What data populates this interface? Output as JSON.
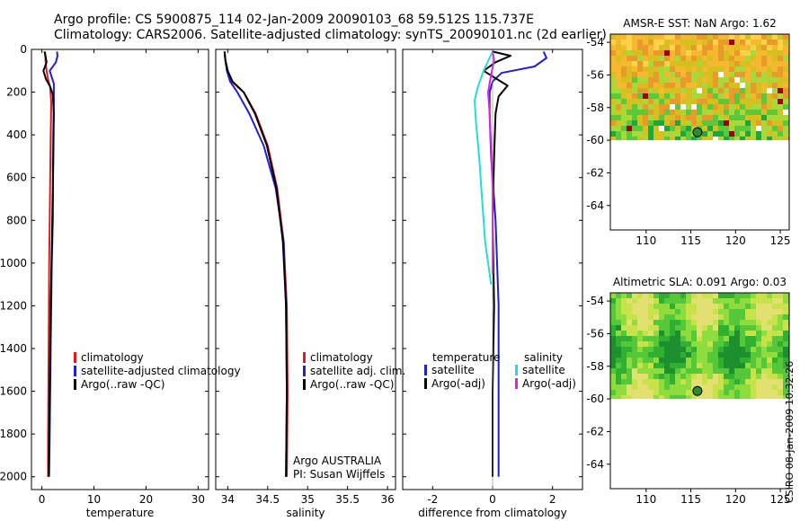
{
  "figure": {
    "title_line1": "Argo profile: CS 5900875_114 02-Jan-2009 20090103_68 59.512S 115.737E",
    "title_line2": "Climatology: CARS2006. Satellite-adjusted climatology: synTS_20090101.nc (2d earlier)",
    "stamp": "CSIRO 08-Jan-2009 10:32:26",
    "argo_note": "Argo AUSTRALIA",
    "pi_note": "PI: Susan Wijffels"
  },
  "colors": {
    "climatology": "#e31a1c",
    "satellite": "#1f1fd6",
    "argo": "#000000",
    "sat_salinity": "#22dde0",
    "argo_salinity_adj": "#e020e0",
    "marker": "#2e8b2e"
  },
  "chart_data": [
    {
      "type": "line",
      "xlabel": "temperature",
      "ylabel": "",
      "xlim": [
        -2,
        32
      ],
      "ylim": [
        2060,
        0
      ],
      "y_reversed": true,
      "xticks": [
        0,
        10,
        20,
        30
      ],
      "yticks": [
        0,
        200,
        400,
        600,
        800,
        1000,
        1200,
        1400,
        1600,
        1800,
        2000
      ],
      "legend": {
        "placement": "lower-left",
        "entries": [
          "climatology",
          "satellite-adjusted climatology",
          "Argo(..raw -QC)"
        ]
      },
      "series": [
        {
          "name": "climatology",
          "color_key": "climatology",
          "x": [
            0.6,
            0.7,
            0.9,
            1.2,
            1.6,
            1.8,
            1.7,
            1.5,
            1.4,
            1.3,
            1.2,
            1.2
          ],
          "y": [
            10,
            50,
            100,
            140,
            180,
            250,
            400,
            800,
            1000,
            1400,
            1800,
            2000
          ]
        },
        {
          "name": "satellite-adjusted climatology",
          "color_key": "satellite",
          "x": [
            2.9,
            3.0,
            2.7,
            1.5,
            2.3,
            2.3,
            2.2,
            2.1,
            1.9,
            1.7,
            1.5,
            1.4
          ],
          "y": [
            10,
            30,
            60,
            100,
            160,
            250,
            400,
            800,
            1000,
            1400,
            1800,
            2000
          ]
        },
        {
          "name": "Argo(..raw -QC)",
          "color_key": "argo",
          "x": [
            0.5,
            0.7,
            0.9,
            0.3,
            0.8,
            1.5,
            2.1,
            2.3,
            2.2,
            2.0,
            1.7,
            1.5,
            1.4,
            1.3
          ],
          "y": [
            10,
            30,
            60,
            100,
            140,
            170,
            210,
            300,
            500,
            800,
            1200,
            1600,
            1800,
            2000
          ]
        }
      ]
    },
    {
      "type": "line",
      "xlabel": "salinity",
      "ylabel": "",
      "xlim": [
        33.85,
        36.1
      ],
      "ylim": [
        2060,
        0
      ],
      "y_reversed": true,
      "xticks": [
        34,
        34.5,
        35,
        35.5,
        36
      ],
      "legend": {
        "placement": "lower-left",
        "entries": [
          "climatology",
          "satellite adj. clim.",
          "Argo(..raw -QC)"
        ]
      },
      "series": [
        {
          "name": "climatology",
          "color_key": "climatology",
          "x": [
            33.96,
            33.97,
            34.0,
            34.05,
            34.2,
            34.35,
            34.5,
            34.62,
            34.7,
            34.74,
            34.75,
            34.74
          ],
          "y": [
            10,
            50,
            100,
            150,
            200,
            300,
            450,
            650,
            900,
            1200,
            1600,
            2000
          ]
        },
        {
          "name": "satellite adj. clim.",
          "color_key": "satellite",
          "x": [
            33.96,
            33.97,
            33.99,
            34.03,
            34.12,
            34.27,
            34.45,
            34.6,
            34.7,
            34.73,
            34.74,
            34.73
          ],
          "y": [
            10,
            50,
            100,
            150,
            200,
            300,
            450,
            650,
            900,
            1200,
            1600,
            2000
          ]
        },
        {
          "name": "Argo(..raw -QC)",
          "color_key": "argo",
          "x": [
            33.96,
            33.97,
            34.0,
            34.06,
            34.2,
            34.34,
            34.49,
            34.61,
            34.69,
            34.73,
            34.74,
            34.73
          ],
          "y": [
            10,
            50,
            100,
            150,
            200,
            300,
            450,
            650,
            900,
            1200,
            1600,
            2000
          ]
        }
      ]
    },
    {
      "type": "line",
      "xlabel": "difference from climatology",
      "ylabel": "",
      "xlim": [
        -3,
        3
      ],
      "ylim": [
        2060,
        0
      ],
      "y_reversed": true,
      "xticks": [
        -2,
        0,
        2
      ],
      "legend": {
        "placement": "lower-left",
        "temperature_heading": "temperature",
        "salinity_heading": "salinity",
        "entries": [
          "satellite",
          "Argo(-adj)",
          "satellite",
          "Argo(-adj)"
        ]
      },
      "series": [
        {
          "name": "satellite",
          "group": "temperature",
          "color_key": "satellite",
          "x": [
            1.7,
            1.8,
            1.4,
            0.3,
            0.0,
            -0.1,
            -0.1,
            -0.05,
            0.1,
            0.2,
            0.2,
            0.2
          ],
          "y": [
            10,
            40,
            80,
            110,
            150,
            200,
            300,
            500,
            800,
            1200,
            1600,
            2000
          ]
        },
        {
          "name": "Argo(-adj)",
          "group": "temperature",
          "color_key": "argo",
          "x": [
            0.0,
            0.6,
            0.1,
            -0.3,
            0.5,
            0.2,
            0.1,
            0.05,
            0.0,
            0.05,
            0.0,
            0.0
          ],
          "y": [
            10,
            30,
            60,
            100,
            170,
            220,
            300,
            500,
            800,
            1200,
            1600,
            2000
          ]
        },
        {
          "name": "satellite",
          "group": "salinity",
          "color_key": "sat_salinity",
          "x": [
            0.0,
            -0.3,
            -0.5,
            -0.6,
            -0.55,
            -0.45,
            -0.35,
            -0.25,
            -0.1,
            -0.05
          ],
          "y": [
            10,
            100,
            180,
            240,
            350,
            500,
            700,
            900,
            1050,
            1100
          ]
        },
        {
          "name": "Argo(-adj)",
          "group": "salinity",
          "color_key": "argo_salinity_adj",
          "x": [
            0.0,
            0.05,
            -0.05,
            -0.15,
            -0.1,
            -0.05,
            0.0,
            0.0,
            0.0
          ],
          "y": [
            10,
            50,
            120,
            200,
            300,
            450,
            650,
            900,
            1050
          ]
        }
      ]
    },
    {
      "type": "heatmap",
      "title": "AMSR-E SST: NaN Argo: 1.62",
      "xlim": [
        106,
        126
      ],
      "ylim": [
        -65.5,
        -53.5
      ],
      "xticks": [
        110,
        115,
        120,
        125
      ],
      "yticks": [
        -54,
        -56,
        -58,
        -60,
        -62,
        -64
      ],
      "data_coverage": "north of 60S only",
      "argo_position": {
        "lon": 115.737,
        "lat": -59.512
      }
    },
    {
      "type": "heatmap",
      "title": "Altimetric SLA: 0.091 Argo: 0.03",
      "xlim": [
        106,
        126
      ],
      "ylim": [
        -65.5,
        -53.5
      ],
      "xticks": [
        110,
        115,
        120,
        125
      ],
      "yticks": [
        -54,
        -56,
        -58,
        -60,
        -62,
        -64
      ],
      "data_coverage": "north of 60S only",
      "argo_position": {
        "lon": 115.737,
        "lat": -59.512
      }
    }
  ]
}
